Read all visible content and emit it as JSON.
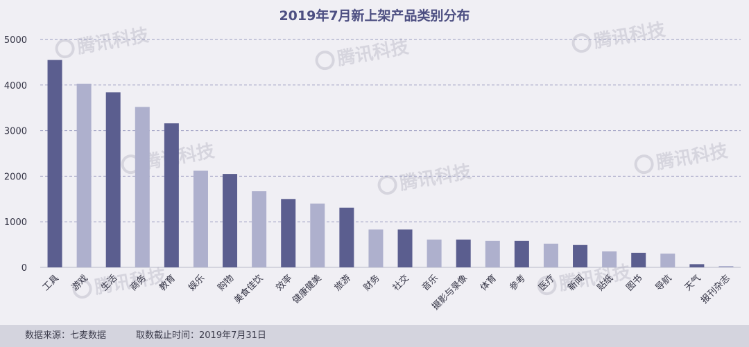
{
  "colors": {
    "dark": "#5b5e8f",
    "light": "#aeb0cd",
    "grid": "#9a9cc0",
    "title": "#4d4f82",
    "tick": "#333344",
    "background": "#f0eff4",
    "footer_bg": "#d4d4de",
    "watermark": "#d6d5de"
  },
  "watermark_text": "腾讯科技",
  "footer": {
    "source": "数据来源：七麦数据",
    "cutoff": "取数截止时间：2019年7月31日"
  },
  "chart_data": {
    "type": "bar",
    "title": "2019年7月新上架产品类别分布",
    "xlabel": "",
    "ylabel": "",
    "ylim": [
      0,
      5000
    ],
    "yticks": [
      0,
      1000,
      2000,
      3000,
      4000,
      5000
    ],
    "grid": true,
    "categories": [
      "工具",
      "游戏",
      "生活",
      "商务",
      "教育",
      "娱乐",
      "购物",
      "美食佳饮",
      "效率",
      "健康健美",
      "旅游",
      "财务",
      "社交",
      "音乐",
      "摄影与录像",
      "体育",
      "参考",
      "医疗",
      "新闻",
      "贴纸",
      "图书",
      "导航",
      "天气",
      "报刊杂志"
    ],
    "values": [
      4550,
      4030,
      3840,
      3520,
      3160,
      2120,
      2050,
      1670,
      1500,
      1400,
      1310,
      830,
      830,
      610,
      610,
      580,
      580,
      520,
      490,
      350,
      320,
      300,
      70,
      30
    ]
  }
}
